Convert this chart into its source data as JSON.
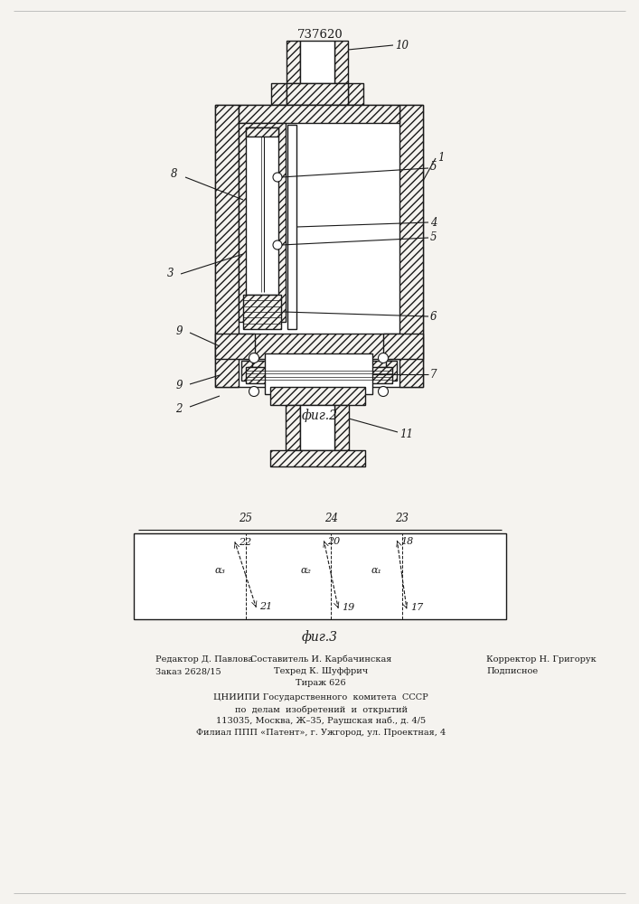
{
  "title": "737620",
  "fig2_label": "фиг.2",
  "fig3_label": "фиг.3",
  "bg_color": "#f5f3ef",
  "line_color": "#1a1a1a",
  "hatch_color": "#1a1a1a"
}
